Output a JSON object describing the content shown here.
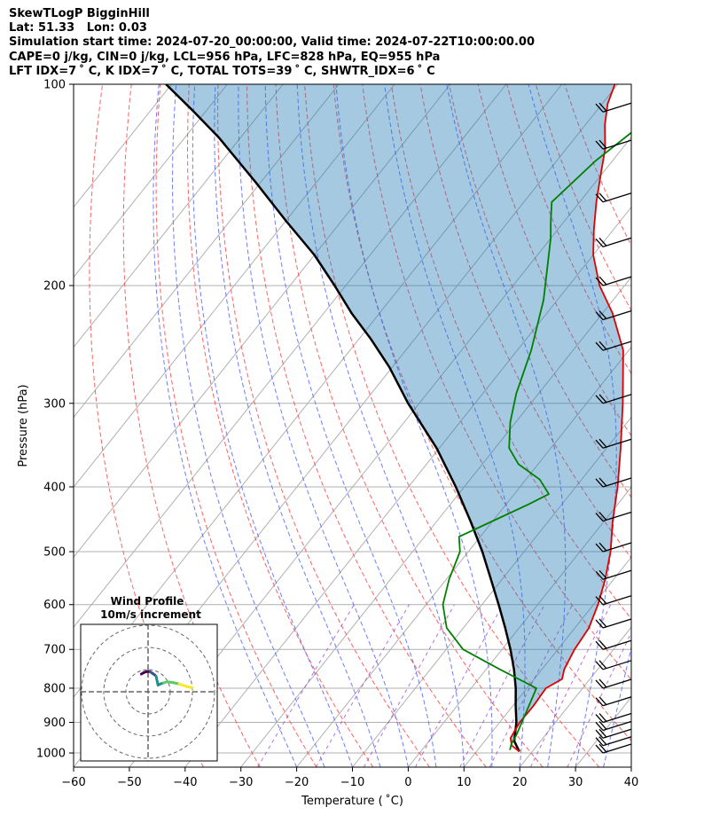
{
  "header": {
    "lines": [
      "SkewTLogP BigginHill",
      "Lat: 51.33   Lon: 0.03",
      "Simulation start time: 2024-07-20_00:00:00, Valid time: 2024-07-22T10:00:00.00",
      "CAPE=0 j/kg, CIN=0 j/kg, LCL=956 hPa, LFC=828 hPa, EQ=955 hPa",
      "LFT IDX=7 ˚ C, K IDX=7 ˚ C, TOTAL TOTS=39 ˚ C, SHWTR_IDX=6 ˚ C"
    ]
  },
  "chart_data": [
    {
      "type": "line",
      "chart_kind": "skew-t log-p",
      "xlabel": "Temperature ( ˚C)",
      "ylabel": "Pressure (hPa)",
      "xlim": [
        -60,
        40
      ],
      "ylim": [
        1050,
        100
      ],
      "log_y": true,
      "skew": true,
      "x_ticks": [
        -60,
        -50,
        -40,
        -30,
        -20,
        -10,
        0,
        10,
        20,
        30,
        40
      ],
      "x_tick_labels": [
        "−60",
        "−50",
        "−40",
        "−30",
        "−20",
        "−10",
        "0",
        "10",
        "20",
        "30",
        "40"
      ],
      "y_ticks": [
        1000,
        900,
        800,
        700,
        600,
        500,
        400,
        300,
        200,
        100
      ],
      "grid": true,
      "series": [
        {
          "role": "temperature",
          "color": "#e00000",
          "points": [
            [
              17.7,
              995
            ],
            [
              15.5,
              975
            ],
            [
              14.2,
              950
            ],
            [
              13.6,
              900
            ],
            [
              13.7,
              850
            ],
            [
              13.4,
              800
            ],
            [
              15.0,
              775
            ],
            [
              14.0,
              750
            ],
            [
              13.0,
              700
            ],
            [
              12.5,
              650
            ],
            [
              10.8,
              600
            ],
            [
              8.5,
              550
            ],
            [
              5.5,
              500
            ],
            [
              1.5,
              450
            ],
            [
              -2.5,
              400
            ],
            [
              -7.5,
              350
            ],
            [
              -13.5,
              300
            ],
            [
              -21.0,
              250
            ],
            [
              -28.2,
              220
            ],
            [
              -34.5,
              200
            ],
            [
              -40.0,
              180
            ],
            [
              -43.5,
              165
            ],
            [
              -47.0,
              150
            ],
            [
              -50.5,
              135
            ],
            [
              -53.0,
              125
            ],
            [
              -56.5,
              115
            ],
            [
              -59.0,
              107
            ],
            [
              -60.5,
              100
            ]
          ]
        },
        {
          "role": "dewpoint",
          "color": "#008000",
          "points": [
            [
              15.8,
              990
            ],
            [
              15.2,
              970
            ],
            [
              14.8,
              940
            ],
            [
              11.7,
              800
            ],
            [
              2.5,
              750
            ],
            [
              -7.0,
              700
            ],
            [
              -13.0,
              650
            ],
            [
              -17.0,
              600
            ],
            [
              -19.5,
              550
            ],
            [
              -21.5,
              500
            ],
            [
              -23.8,
              475
            ],
            [
              -20.0,
              450
            ],
            [
              -16.0,
              425
            ],
            [
              -13.8,
              410
            ],
            [
              -17.5,
              390
            ],
            [
              -23.5,
              370
            ],
            [
              -27.5,
              350
            ],
            [
              -31.0,
              320
            ],
            [
              -34.0,
              290
            ],
            [
              -37.5,
              250
            ],
            [
              -42.5,
              210
            ],
            [
              -47.0,
              185
            ],
            [
              -50.0,
              170
            ],
            [
              -52.5,
              160
            ],
            [
              -55.0,
              150
            ],
            [
              -53.0,
              130
            ],
            [
              -50.0,
              115
            ],
            [
              -47.0,
              100
            ]
          ]
        },
        {
          "role": "parcel",
          "color": "#000000",
          "points": [
            [
              17.7,
              995
            ],
            [
              15.3,
              960
            ],
            [
              13.0,
              900
            ],
            [
              10.5,
              850
            ],
            [
              8.0,
              800
            ],
            [
              5.0,
              750
            ],
            [
              1.5,
              700
            ],
            [
              -2.5,
              650
            ],
            [
              -7.0,
              600
            ],
            [
              -12.0,
              550
            ],
            [
              -17.5,
              500
            ],
            [
              -24.0,
              450
            ],
            [
              -31.5,
              400
            ],
            [
              -40.5,
              350
            ],
            [
              -52.0,
              300
            ],
            [
              -60.5,
              265
            ],
            [
              -68.0,
              240
            ],
            [
              -75.0,
              220
            ],
            [
              -82.0,
              200
            ],
            [
              -90.0,
              180
            ],
            [
              -100.0,
              160
            ],
            [
              -111.0,
              140
            ],
            [
              -124.0,
              120
            ],
            [
              -132.0,
              110
            ],
            [
              -141.0,
              100
            ]
          ]
        }
      ],
      "wind_barbs": {
        "color": "#000000",
        "pressures": [
          1000,
          975,
          950,
          925,
          900,
          850,
          800,
          750,
          700,
          650,
          600,
          550,
          500,
          450,
          400,
          350,
          300,
          250,
          225,
          200,
          175,
          150,
          125,
          110
        ]
      }
    },
    {
      "type": "scatter",
      "chart_kind": "hodograph",
      "title": "Wind Profile",
      "subtitle": "10m/s increment",
      "ring_step_ms": 10,
      "rings": [
        10,
        20,
        30
      ],
      "colormap": [
        "#440154",
        "#3b528b",
        "#21918c",
        "#5ec962",
        "#fde725"
      ],
      "points_uv": [
        [
          -3,
          8
        ],
        [
          -2,
          8.6
        ],
        [
          -1,
          9
        ],
        [
          0,
          9.2
        ],
        [
          1,
          9
        ],
        [
          2,
          8.3
        ],
        [
          3,
          7.6
        ],
        [
          3.6,
          7.0
        ],
        [
          4.5,
          3.0
        ],
        [
          5.5,
          3.5
        ],
        [
          7,
          4
        ],
        [
          8.5,
          4.5
        ],
        [
          11,
          4.2
        ],
        [
          14,
          3.5
        ],
        [
          17,
          2.5
        ],
        [
          19,
          2.0
        ],
        [
          20,
          1.8
        ]
      ]
    }
  ]
}
